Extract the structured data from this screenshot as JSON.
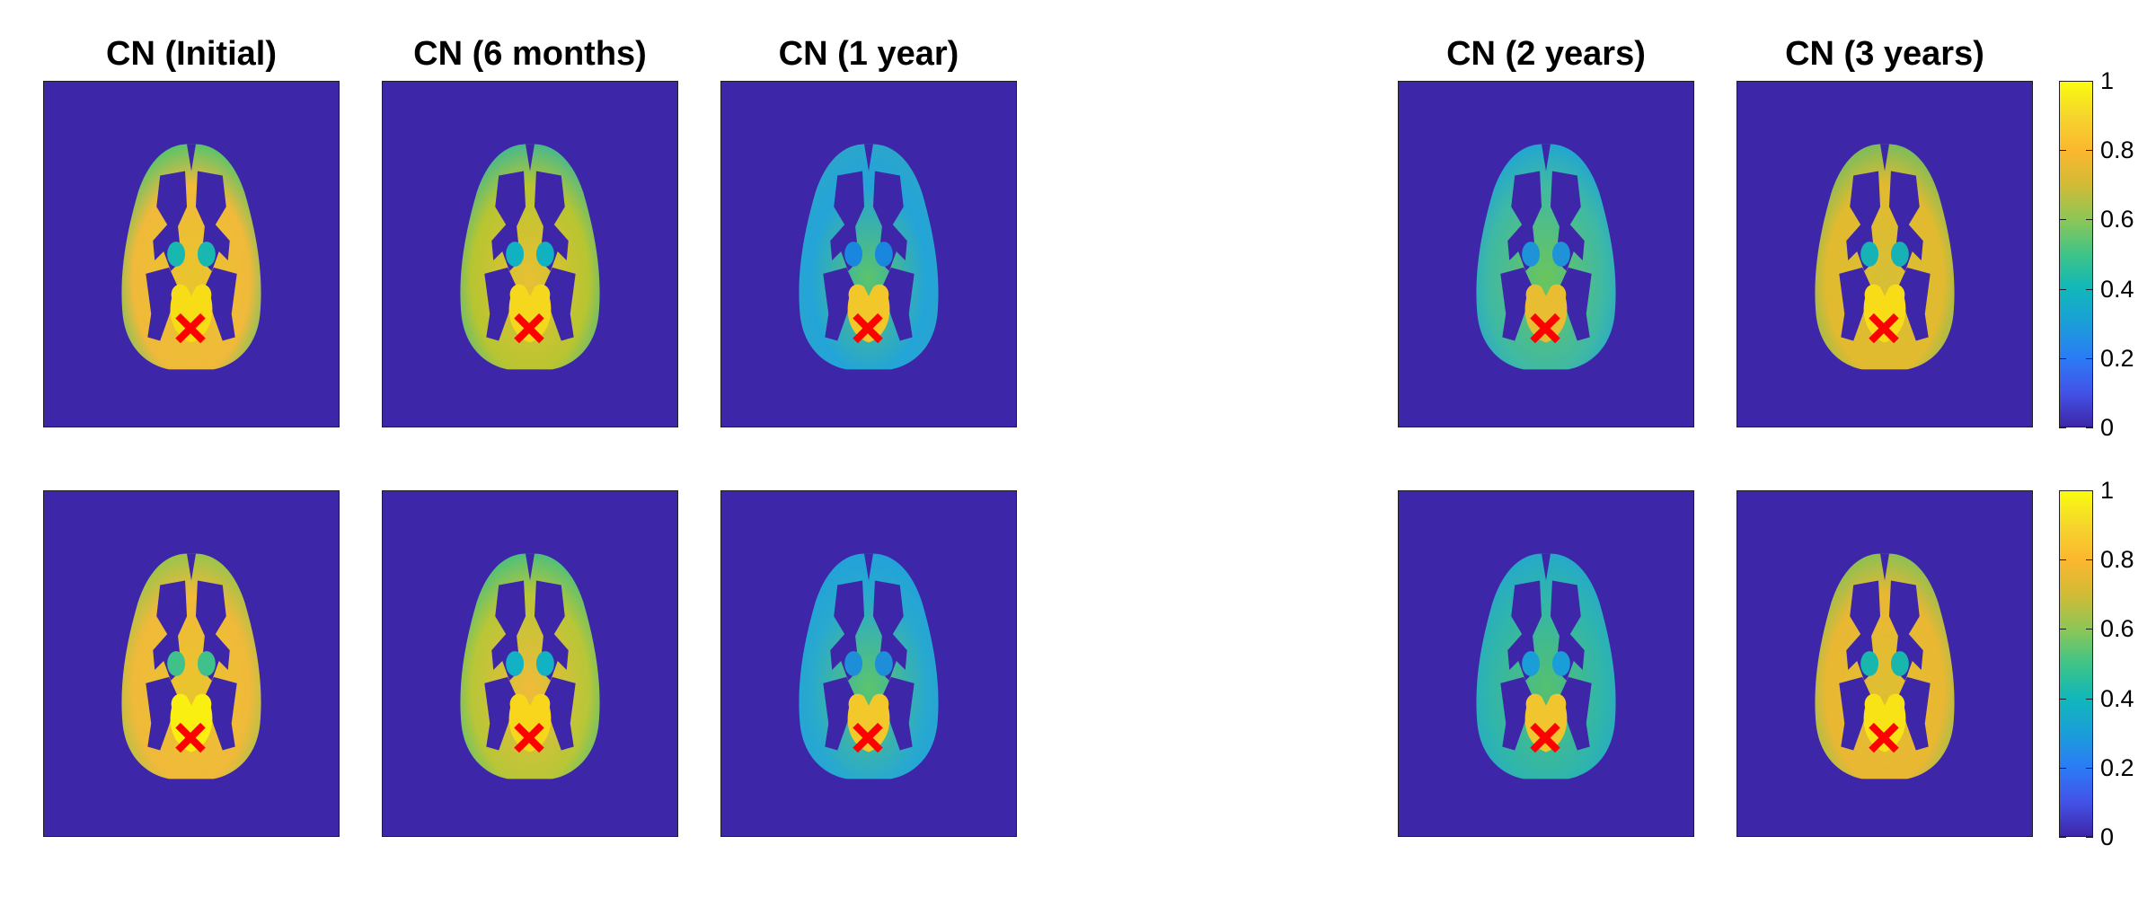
{
  "titles": [
    "CN (Initial)",
    "CN (6 months)",
    "CN (1 year)",
    "CN (2 years)",
    "CN (3 years)"
  ],
  "rows": [
    {
      "name": "top-row",
      "panels": [
        {
          "ctx": "#f0b93a",
          "inner": "#e9c52c",
          "ventricle": "#18b8b0",
          "edge": "#5bc46a",
          "seed": "#f7dd16"
        },
        {
          "ctx": "#b7c531",
          "inner": "#e8c033",
          "ventricle": "#10b1c0",
          "edge": "#49b98b",
          "seed": "#f5d81d"
        },
        {
          "ctx": "#23a4d8",
          "inner": "#5bc46a",
          "ventricle": "#1987dd",
          "edge": "#2ba6cc",
          "seed": "#f2c72a"
        },
        {
          "ctx": "#3fb9a4",
          "inner": "#6bc55c",
          "ventricle": "#1e93d8",
          "edge": "#22a6d0",
          "seed": "#e8bd32"
        },
        {
          "ctx": "#e2ba2f",
          "inner": "#d7bf34",
          "ventricle": "#16b2b5",
          "edge": "#7dbd5a",
          "seed": "#f7dc17"
        }
      ]
    },
    {
      "name": "bottom-row",
      "panels": [
        {
          "ctx": "#f0b93a",
          "inner": "#e9c52c",
          "ventricle": "#40c08b",
          "edge": "#9bc44b",
          "seed": "#f9ef10"
        },
        {
          "ctx": "#b8c637",
          "inner": "#f0bb3a",
          "ventricle": "#12b2c4",
          "edge": "#50c07a",
          "seed": "#f7d61b"
        },
        {
          "ctx": "#28a9cf",
          "inner": "#5cc56b",
          "ventricle": "#1f8ed8",
          "edge": "#22a2d8",
          "seed": "#f3c82a"
        },
        {
          "ctx": "#2fb5ad",
          "inner": "#56c070",
          "ventricle": "#199ed8",
          "edge": "#26a9c8",
          "seed": "#f0c52d"
        },
        {
          "ctx": "#eab733",
          "inner": "#dfbf31",
          "ventricle": "#18b6ad",
          "edge": "#8ec052",
          "seed": "#f8e416"
        }
      ]
    }
  ],
  "colorbar": {
    "ticks": [
      "1",
      "0.8",
      "0.6",
      "0.4",
      "0.2",
      "0"
    ],
    "gradient": [
      "#3e26a8",
      "#4353e8",
      "#2a7cf5",
      "#1b9ed8",
      "#11b7ba",
      "#3ec487",
      "#8cc656",
      "#d1bb36",
      "#fbb72f",
      "#f6d52c",
      "#f9fb0e"
    ]
  },
  "marker": {
    "symbol": "×",
    "color": "#ff0000"
  },
  "background_color": "#3e26a8"
}
